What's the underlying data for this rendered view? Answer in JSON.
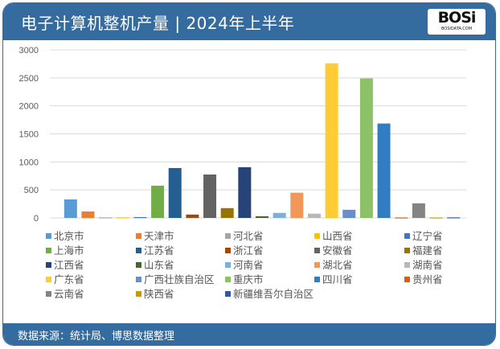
{
  "header": {
    "title": "电子计算机整机产量 | 2024年上半年",
    "logo_text": "BOSi",
    "logo_sub": "BOSIDATA.COM"
  },
  "footer": {
    "source": "数据来源：统计局、博思数据整理"
  },
  "chart_data": {
    "type": "bar",
    "title": "电子计算机整机产量 | 2024年上半年",
    "xlabel": "",
    "ylabel": "",
    "ylim": [
      0,
      3000
    ],
    "yticks": [
      "0",
      "500",
      "1000",
      "1500",
      "2000",
      "2500",
      "3000"
    ],
    "grid": true,
    "legend_position": "bottom",
    "categories": [
      "北京市",
      "天津市",
      "河北省",
      "山西省",
      "辽宁省",
      "上海市",
      "江苏省",
      "浙江省",
      "安徽省",
      "福建省",
      "江西省",
      "山东省",
      "河南省",
      "湖北省",
      "湖南省",
      "广东省",
      "广西壮族自治区",
      "重庆市",
      "四川省",
      "贵州省",
      "云南省",
      "陕西省",
      "新疆维吾尔自治区"
    ],
    "values": [
      330,
      115,
      10,
      10,
      15,
      575,
      890,
      60,
      775,
      175,
      905,
      30,
      90,
      450,
      75,
      2760,
      145,
      2490,
      1685,
      8,
      260,
      8,
      10
    ],
    "colors": [
      "#5b9bd5",
      "#ed7d31",
      "#a5a5a5",
      "#ffc000",
      "#4472c4",
      "#70ad47",
      "#255e91",
      "#9e480e",
      "#636363",
      "#997300",
      "#264478",
      "#43682b",
      "#7cafdd",
      "#f1975a",
      "#b7b7b7",
      "#ffcd33",
      "#698ed0",
      "#8cc168",
      "#327dc2",
      "#d26012",
      "#848484",
      "#cc9a00",
      "#335aa1"
    ]
  }
}
